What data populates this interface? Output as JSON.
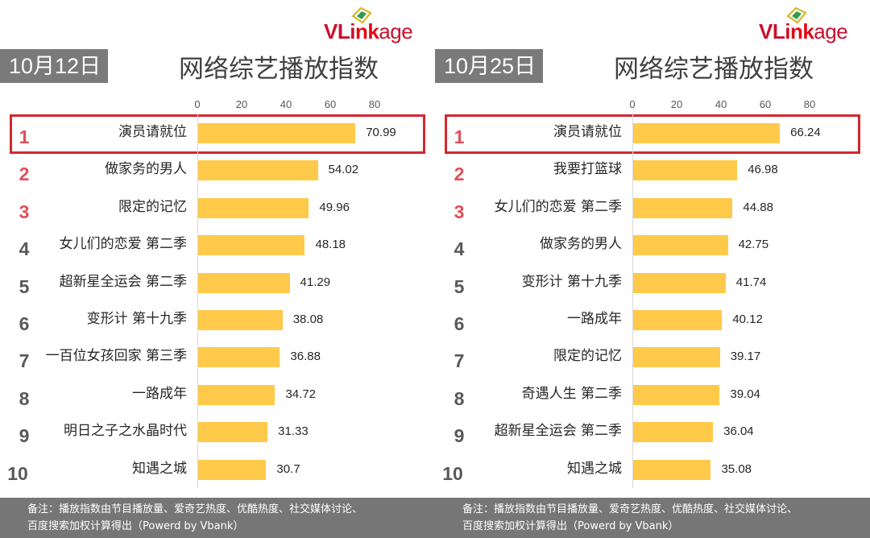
{
  "panels": [
    {
      "brand": "VLinkage",
      "date": "10月12日",
      "title": "网络综艺播放指数",
      "footnote_lines": [
        "备注：播放指数由节目播放量、爱奇艺热度、优酷热度、社交媒体讨论、",
        "百度搜索加权计算得出（Powerd by Vbank）"
      ]
    },
    {
      "brand": "VLinkage",
      "date": "10月25日",
      "title": "网络综艺播放指数",
      "footnote_lines": [
        "备注：播放指数由节目播放量、爱奇艺热度、优酷热度、社交媒体讨论、",
        "百度搜索加权计算得出（Powerd by Vbank）"
      ]
    }
  ],
  "colors": {
    "bar": "#ffc94a",
    "rank_top": "#e0505a",
    "rank_rest": "#595959",
    "highlight": "#d2282e",
    "badge": "#7a7a7a",
    "footer": "#767676"
  },
  "chart_data": [
    {
      "type": "bar",
      "orientation": "horizontal",
      "title": "网络综艺播放指数",
      "date": "10月12日",
      "xlim": [
        0,
        80
      ],
      "xticks": [
        0,
        20,
        40,
        60,
        80
      ],
      "ranks": [
        "1",
        "2",
        "3",
        "4",
        "5",
        "6",
        "7",
        "8",
        "9",
        "10"
      ],
      "categories": [
        "演员请就位",
        "做家务的男人",
        "限定的记忆",
        "女儿们的恋爱 第二季",
        "超新星全运会 第二季",
        "变形计 第十九季",
        "一百位女孩回家 第三季",
        "一路成年",
        "明日之子之水晶时代",
        "知遇之城"
      ],
      "values": [
        70.99,
        54.02,
        49.96,
        48.18,
        41.29,
        38.08,
        36.88,
        34.72,
        31.33,
        30.7
      ],
      "value_labels": [
        "70.99",
        "54.02",
        "49.96",
        "48.18",
        "41.29",
        "38.08",
        "36.88",
        "34.72",
        "31.33",
        "30.7"
      ],
      "highlighted": "演员请就位"
    },
    {
      "type": "bar",
      "orientation": "horizontal",
      "title": "网络综艺播放指数",
      "date": "10月25日",
      "xlim": [
        0,
        80
      ],
      "xticks": [
        0,
        20,
        40,
        60,
        80
      ],
      "ranks": [
        "1",
        "2",
        "3",
        "4",
        "5",
        "6",
        "7",
        "8",
        "9",
        "10"
      ],
      "categories": [
        "演员请就位",
        "我要打篮球",
        "女儿们的恋爱 第二季",
        "做家务的男人",
        "变形计 第十九季",
        "一路成年",
        "限定的记忆",
        "奇遇人生 第二季",
        "超新星全运会 第二季",
        "知遇之城"
      ],
      "values": [
        66.24,
        46.98,
        44.88,
        42.75,
        41.74,
        40.12,
        39.17,
        39.04,
        36.04,
        35.08
      ],
      "value_labels": [
        "66.24",
        "46.98",
        "44.88",
        "42.75",
        "41.74",
        "40.12",
        "39.17",
        "39.04",
        "36.04",
        "35.08"
      ],
      "highlighted": "演员请就位"
    }
  ]
}
